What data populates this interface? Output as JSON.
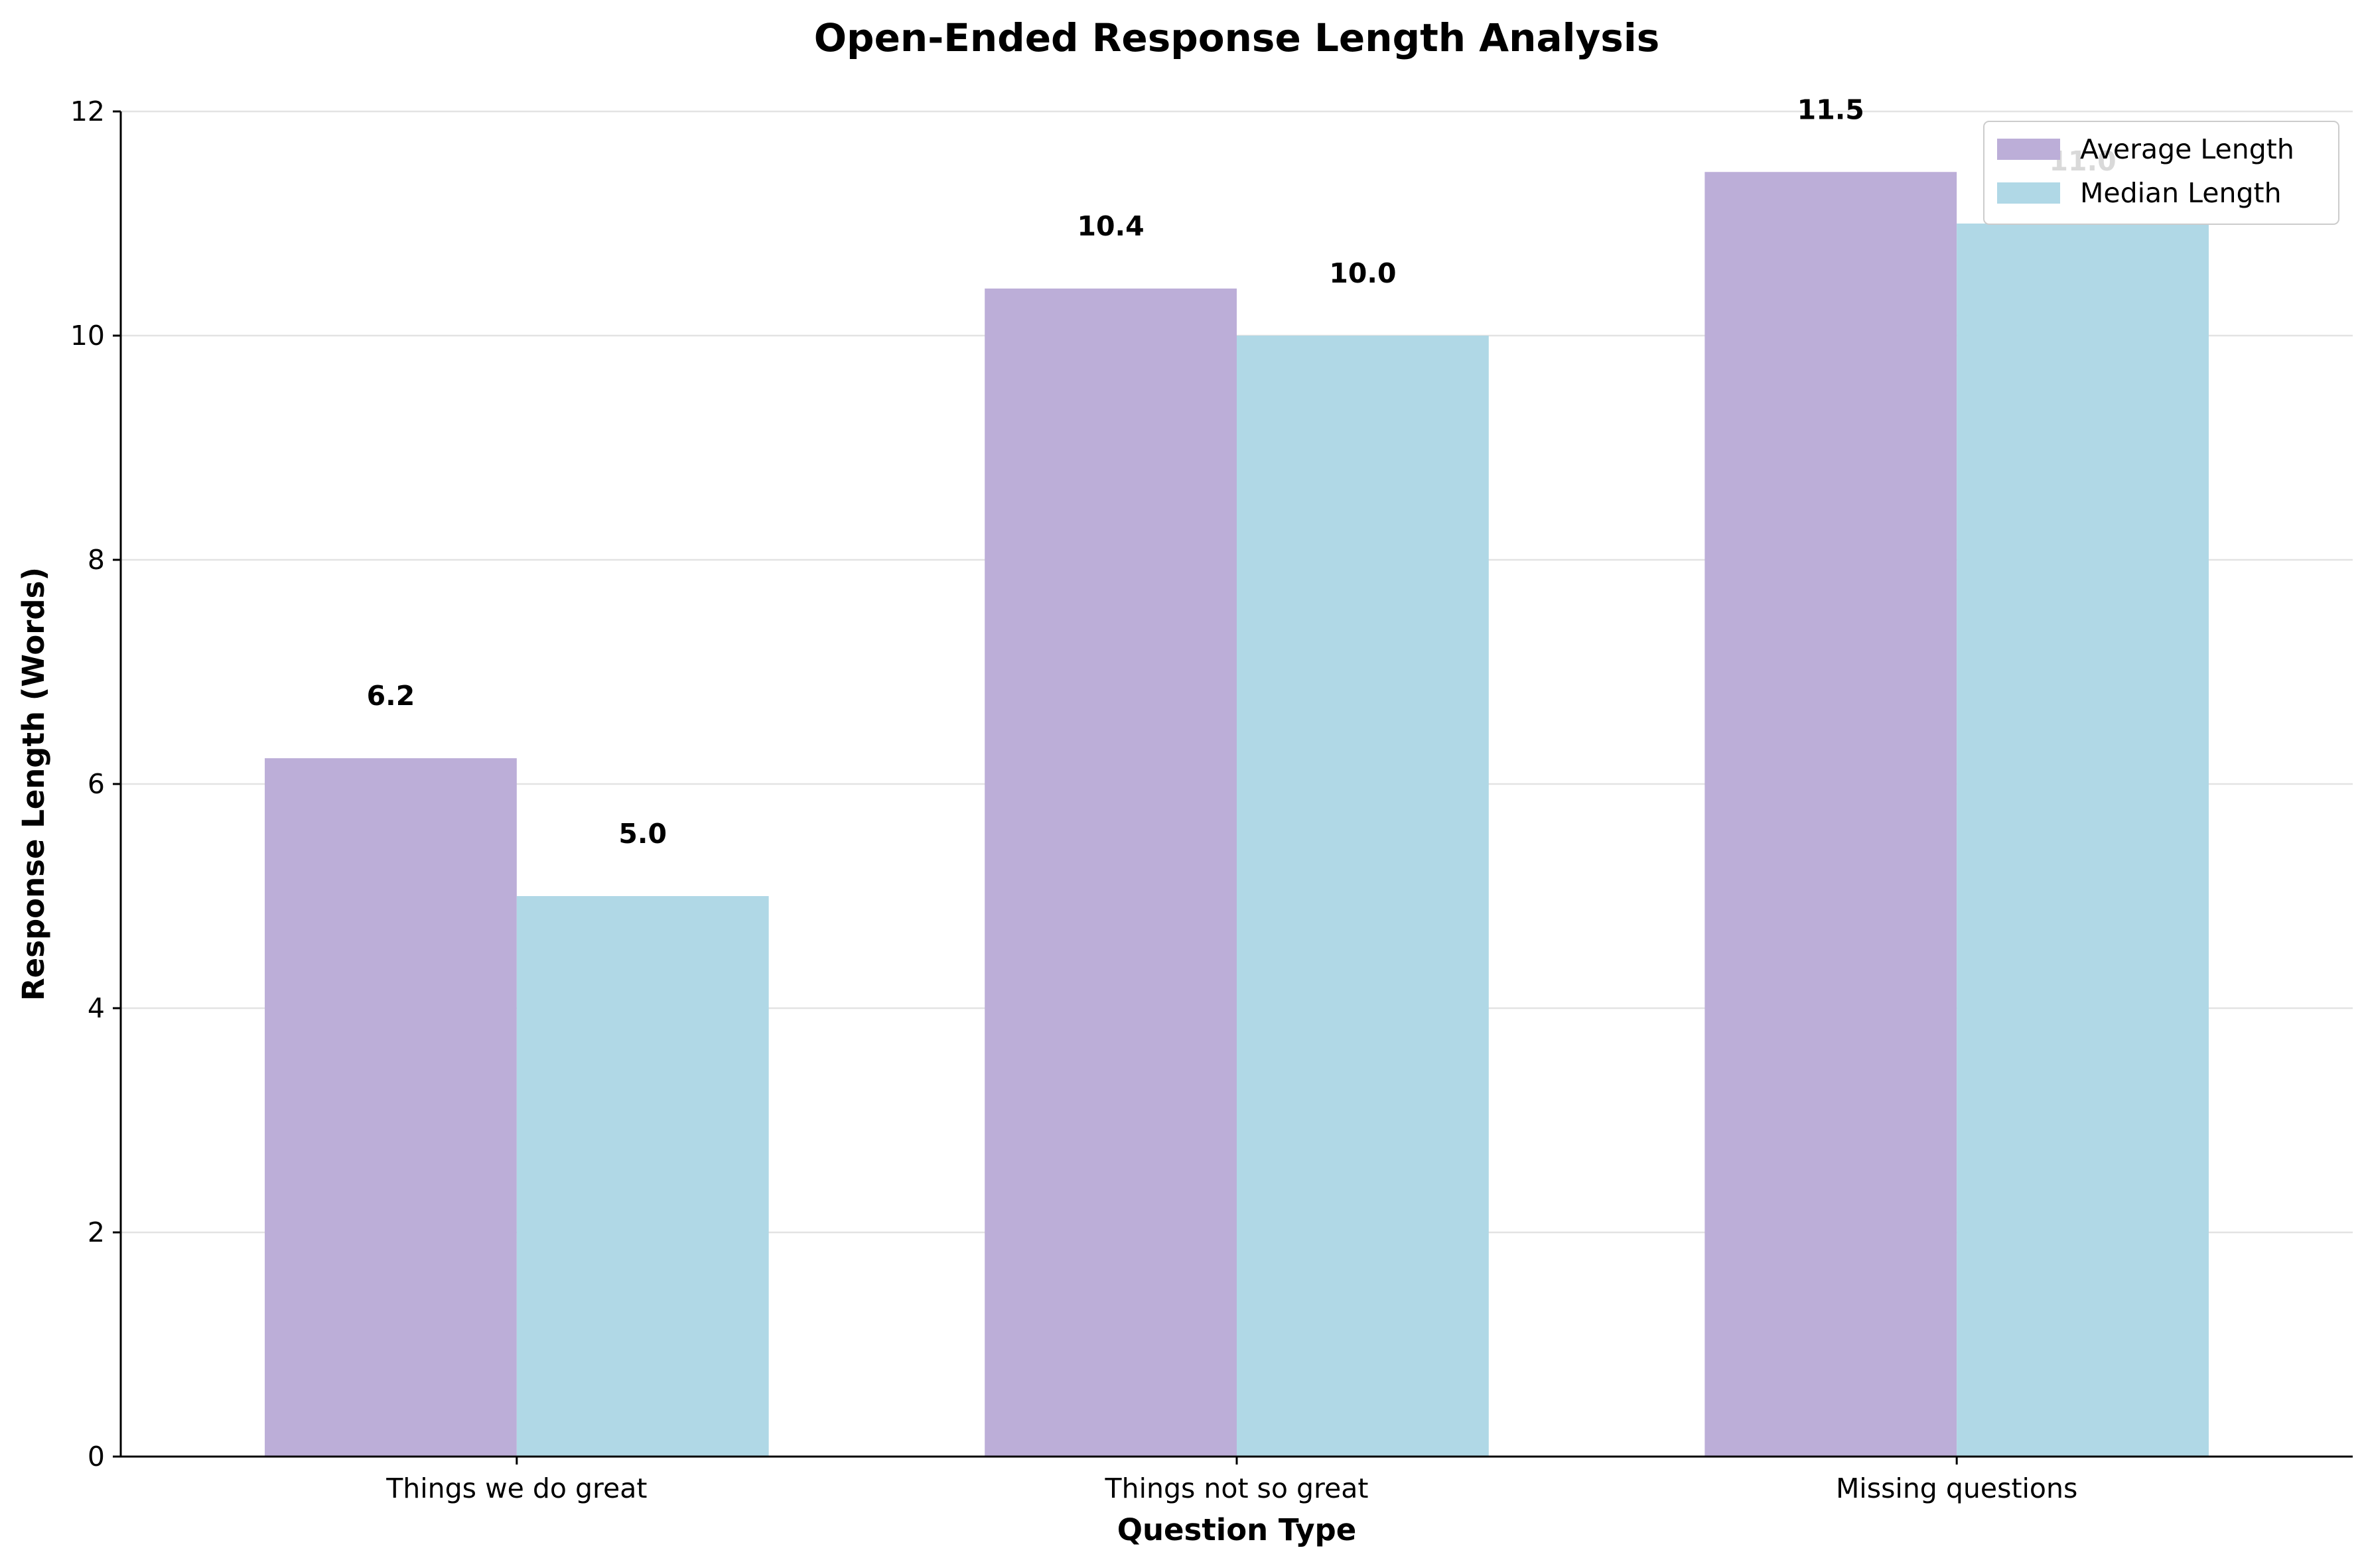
{
  "chart_data": {
    "type": "bar",
    "title": "Open-Ended Response Length Analysis",
    "xlabel": "Question Type",
    "ylabel": "Response Length (Words)",
    "categories": [
      "Things we do great",
      "Things not so great",
      "Missing questions"
    ],
    "series": [
      {
        "name": "Average Length",
        "values": [
          6.23,
          10.42,
          11.46
        ],
        "labels": [
          "6.2",
          "10.4",
          "11.5"
        ],
        "color": "#bcaed8"
      },
      {
        "name": "Median Length",
        "values": [
          5.0,
          10.0,
          11.0
        ],
        "labels": [
          "5.0",
          "10.0",
          "11.0"
        ],
        "color": "#b0d8e6"
      }
    ],
    "ylim": [
      0,
      12
    ],
    "yticks": [
      0,
      2,
      4,
      6,
      8,
      10,
      12
    ],
    "grid": "y-axis",
    "legend": "top-right"
  }
}
